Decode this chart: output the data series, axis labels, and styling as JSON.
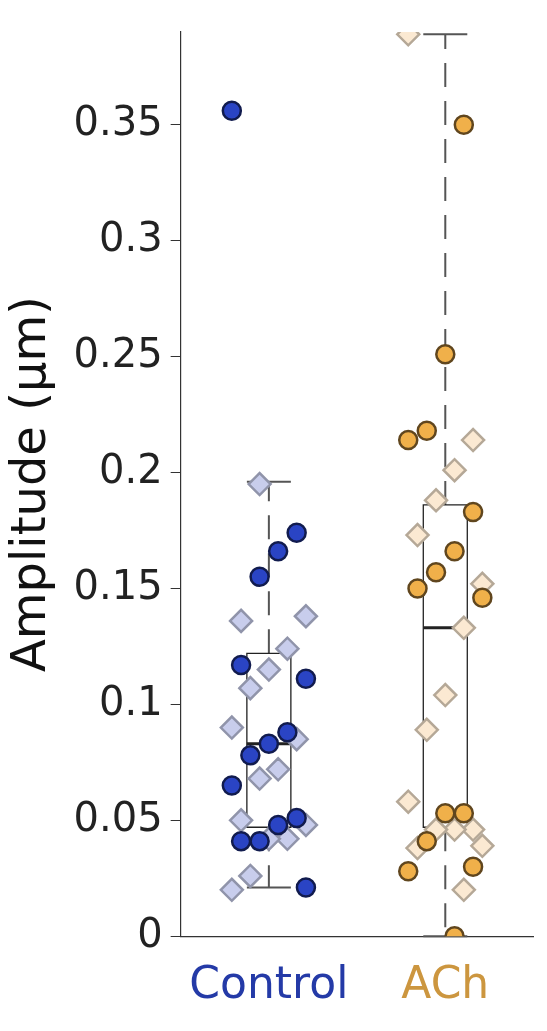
{
  "chart_data": {
    "type": "box",
    "ylabel": "Amplitude (μm)",
    "categories": [
      "Control",
      "ACh"
    ],
    "ylim": [
      0,
      0.39
    ],
    "yticks": [
      0,
      0.05,
      {
        "value": 0.1,
        "label": "0.1"
      },
      0.15,
      {
        "value": 0.2,
        "label": "0.2"
      },
      0.25,
      {
        "value": 0.3,
        "label": "0.3"
      },
      0.35
    ],
    "grid": false,
    "legend": false,
    "boxes": [
      {
        "low": 0.021,
        "q1": 0.047,
        "median": 0.083,
        "q3": 0.122,
        "high": 0.196
      },
      {
        "low": 0,
        "q1": 0.047,
        "median": 0.133,
        "q3": 0.186,
        "high": 0.389
      }
    ],
    "series": [
      {
        "type": "scatter",
        "marker": "circle",
        "color": "#2a44c4",
        "x": [
          "Control",
          "Control",
          "Control",
          "Control",
          "Control",
          "Control",
          "Control",
          "Control",
          "Control",
          "Control",
          "Control",
          "Control",
          "Control",
          "Control",
          "Control"
        ],
        "values": [
          0.356,
          0.174,
          0.166,
          0.155,
          0.117,
          0.111,
          0.088,
          0.083,
          0.078,
          0.065,
          0.051,
          0.048,
          0.041,
          0.041,
          0.021
        ]
      },
      {
        "type": "scatter",
        "marker": "diamond",
        "color": "#c8cdec",
        "x": [
          "Control",
          "Control",
          "Control",
          "Control",
          "Control",
          "Control",
          "Control",
          "Control",
          "Control",
          "Control",
          "Control",
          "Control",
          "Control",
          "Control",
          "Control",
          "Control"
        ],
        "values": [
          0.195,
          0.136,
          0.138,
          0.124,
          0.115,
          0.107,
          0.09,
          0.085,
          0.072,
          0.068,
          0.05,
          0.048,
          0.042,
          0.042,
          0.026,
          0.02
        ]
      },
      {
        "type": "scatter",
        "marker": "circle",
        "color": "#f0b04a",
        "x": [
          "ACh",
          "ACh",
          "ACh",
          "ACh",
          "ACh",
          "ACh",
          "ACh",
          "ACh",
          "ACh",
          "ACh",
          "ACh",
          "ACh",
          "ACh",
          "ACh",
          "ACh"
        ],
        "values": [
          0.35,
          0.251,
          0.218,
          0.214,
          0.183,
          0.166,
          0.157,
          0.15,
          0.146,
          0.053,
          0.053,
          0.041,
          0.028,
          0.03,
          0
        ]
      },
      {
        "type": "scatter",
        "marker": "diamond",
        "color": "#fbe9d2",
        "x": [
          "ACh",
          "ACh",
          "ACh",
          "ACh",
          "ACh",
          "ACh",
          "ACh",
          "ACh",
          "ACh",
          "ACh",
          "ACh",
          "ACh",
          "ACh",
          "ACh",
          "ACh",
          "ACh"
        ],
        "values": [
          0.389,
          0.214,
          0.201,
          0.188,
          0.173,
          0.152,
          0.133,
          0.104,
          0.089,
          0.058,
          0.046,
          0.046,
          0.046,
          0.038,
          0.039,
          0.02
        ]
      }
    ]
  }
}
